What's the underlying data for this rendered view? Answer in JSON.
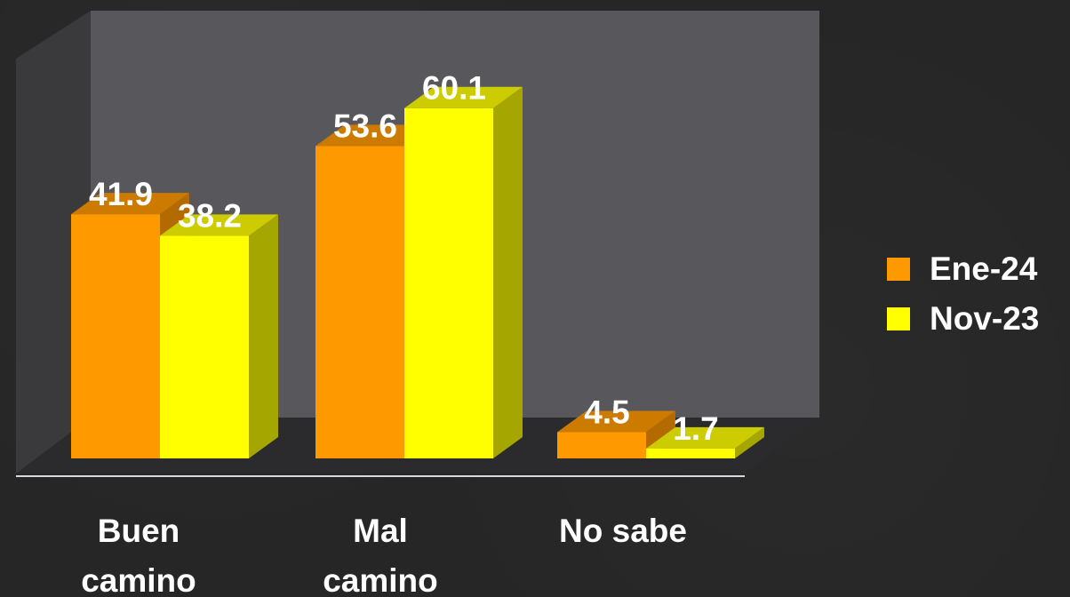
{
  "chart_data": {
    "type": "bar",
    "style": "3d-clustered",
    "categories": [
      [
        "Buen",
        "camino"
      ],
      [
        "Mal",
        "camino"
      ],
      [
        "No sabe"
      ]
    ],
    "series": [
      {
        "name": "Ene-24",
        "values": [
          41.9,
          53.6,
          4.5
        ],
        "color": "#ff9900",
        "top_color": "#cc7a00",
        "side_color": "#b36b00"
      },
      {
        "name": "Nov-23",
        "values": [
          38.2,
          60.1,
          1.7
        ],
        "color": "#ffff00",
        "top_color": "#cccc00",
        "side_color": "#a6a600"
      }
    ],
    "value_labels": [
      [
        "41.9",
        "53.6",
        "4.5"
      ],
      [
        "38.2",
        "60.1",
        "1.7"
      ]
    ],
    "legend_position": "right",
    "grid": false,
    "ylim": [
      0,
      70
    ],
    "wall_color": "#58575b",
    "label_color": "#ffffff"
  },
  "legend": {
    "items": [
      {
        "label": "Ene-24",
        "color": "#ff9900"
      },
      {
        "label": "Nov-23",
        "color": "#ffff00"
      }
    ]
  }
}
